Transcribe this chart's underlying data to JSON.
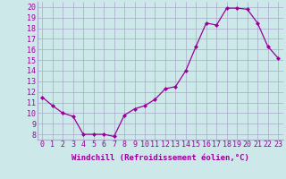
{
  "x": [
    0,
    1,
    2,
    3,
    4,
    5,
    6,
    7,
    8,
    9,
    10,
    11,
    12,
    13,
    14,
    15,
    16,
    17,
    18,
    19,
    20,
    21,
    22,
    23
  ],
  "y": [
    11.5,
    10.7,
    10.0,
    9.7,
    8.0,
    8.0,
    8.0,
    7.8,
    9.8,
    10.4,
    10.7,
    11.3,
    12.3,
    12.5,
    14.0,
    16.3,
    18.5,
    18.3,
    19.9,
    19.9,
    19.8,
    18.5,
    16.3,
    15.2
  ],
  "line_color": "#990099",
  "marker": "D",
  "markersize": 2.0,
  "linewidth": 0.9,
  "xlabel": "Windchill (Refroidissement éolien,°C)",
  "xlabel_fontsize": 6.5,
  "ylabel_ticks": [
    8,
    9,
    10,
    11,
    12,
    13,
    14,
    15,
    16,
    17,
    18,
    19,
    20
  ],
  "ylim": [
    7.5,
    20.5
  ],
  "xlim": [
    -0.5,
    23.5
  ],
  "bg_color": "#cce8e8",
  "grid_color": "#aaaacc",
  "tick_label_color": "#990099",
  "tick_label_fontsize": 6.0
}
